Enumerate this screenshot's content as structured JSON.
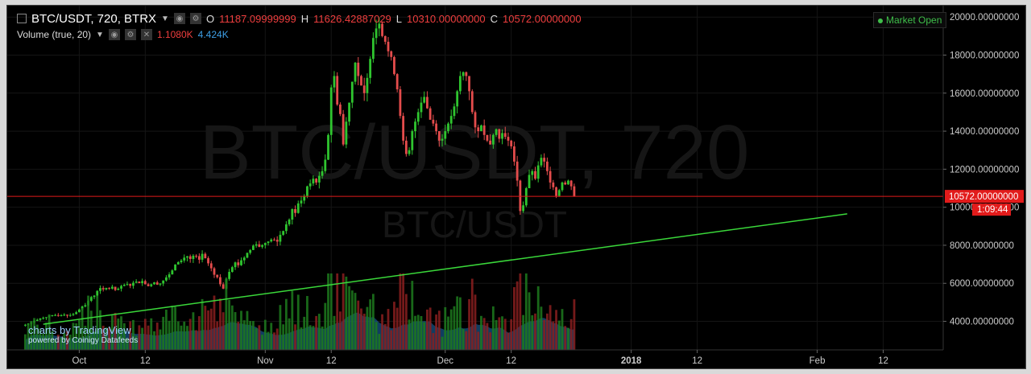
{
  "header": {
    "symbol": "BTC/USDT, 720, BTRX",
    "o_label": "O",
    "o_value": "11187.09999999",
    "h_label": "H",
    "h_value": "11626.42887029",
    "l_label": "L",
    "l_value": "10310.00000000",
    "c_label": "C",
    "c_value": "10572.00000000"
  },
  "volume_legend": {
    "label": "Volume (true, 20)",
    "value1": "1.1080K",
    "value2": "4.424K"
  },
  "market_status": "Market Open",
  "watermark": {
    "big": "BTC/USDT, 720",
    "small": "BTC/USDT"
  },
  "branding": {
    "line1": "charts by TradingView",
    "line2": "powered by Coinigy Datafeeds"
  },
  "price_tag": {
    "price": "10572.00000000",
    "countdown": "1:09:44"
  },
  "colors": {
    "up": "#2fc52f",
    "down": "#e44c4c",
    "trendline": "#3ad83a",
    "price_line": "#e01b1b",
    "volume_area": "#1e6fb0"
  },
  "chart_data": {
    "type": "candlestick",
    "price_axis": {
      "ticks": [
        "4000.00000000",
        "6000.00000000",
        "8000.00000000",
        "10000.00000000",
        "12000.00000000",
        "14000.00000000",
        "16000.00000000",
        "18000.00000000",
        "20000.00000000"
      ],
      "tick_values": [
        4000,
        6000,
        8000,
        10000,
        12000,
        14000,
        16000,
        18000,
        20000
      ],
      "range": [
        2500,
        20600
      ]
    },
    "time_axis": {
      "labels": [
        "Oct",
        "12",
        "Nov",
        "12",
        "Dec",
        "12",
        "2018",
        "12",
        "Feb",
        "12"
      ],
      "dates": [
        "2017-10-01",
        "2017-10-12",
        "2017-11-01",
        "2017-11-12",
        "2017-12-01",
        "2017-12-12",
        "2018-01-01",
        "2018-01-12",
        "2018-02-01",
        "2018-02-12"
      ],
      "range": [
        "2017-09-19",
        "2018-02-22"
      ]
    },
    "trendline": {
      "from": {
        "date": "2017-09-25",
        "price": 3850
      },
      "to": {
        "date": "2018-02-06",
        "price": 9650
      }
    },
    "last_price": 10572,
    "close_series": {
      "start_date": "2017-09-22",
      "points_per_day": 2,
      "values": [
        3820,
        3880,
        3950,
        4020,
        4080,
        4150,
        4190,
        4220,
        4300,
        4320,
        4330,
        4300,
        4320,
        4350,
        4300,
        4330,
        4380,
        4480,
        4620,
        4780,
        4850,
        5080,
        5280,
        5350,
        5600,
        5750,
        5680,
        5760,
        5720,
        5820,
        5650,
        5720,
        5860,
        5920,
        5960,
        5870,
        6030,
        6090,
        6010,
        6120,
        5950,
        5850,
        5950,
        6050,
        5930,
        5990,
        6150,
        6310,
        6470,
        6680,
        6990,
        7110,
        7200,
        7350,
        7420,
        7280,
        7450,
        7430,
        7240,
        7550,
        7320,
        7050,
        6790,
        6450,
        6320,
        5950,
        5720,
        6230,
        6600,
        6850,
        7100,
        6950,
        7210,
        7350,
        7600,
        7750,
        7980,
        8050,
        7920,
        8010,
        8120,
        8200,
        8300,
        8290,
        8190,
        8550,
        8750,
        9100,
        9350,
        9900,
        9700,
        10200,
        10350,
        10600,
        11100,
        11250,
        11500,
        11300,
        11650,
        11900,
        12500,
        13800,
        16300,
        16900,
        15400,
        14900,
        13300,
        14500,
        15500,
        16600,
        17600,
        16900,
        16400,
        16000,
        16800,
        17800,
        18900,
        19400,
        19650,
        19000,
        18700,
        18200,
        17900,
        17000,
        16200,
        14800,
        13500,
        12800,
        13000,
        14000,
        14500,
        15000,
        15500,
        15800,
        15200,
        14600,
        14400,
        14000,
        13500,
        13600,
        14000,
        14400,
        14800,
        15300,
        16100,
        16900,
        17100,
        16900,
        16100,
        15000,
        14200,
        14000,
        14300,
        13800,
        13500,
        13300,
        13800,
        14100,
        13600,
        13900,
        13700,
        13500,
        13200,
        12400,
        11400,
        9800,
        10100,
        11000,
        11700,
        11900,
        11500,
        12200,
        12600,
        12400,
        11900,
        11300,
        11050,
        10600,
        10900,
        11300,
        11200,
        11400,
        11100,
        10572
      ]
    },
    "volume": {
      "legend_values": [
        "1.1080K",
        "4.424K"
      ]
    }
  }
}
